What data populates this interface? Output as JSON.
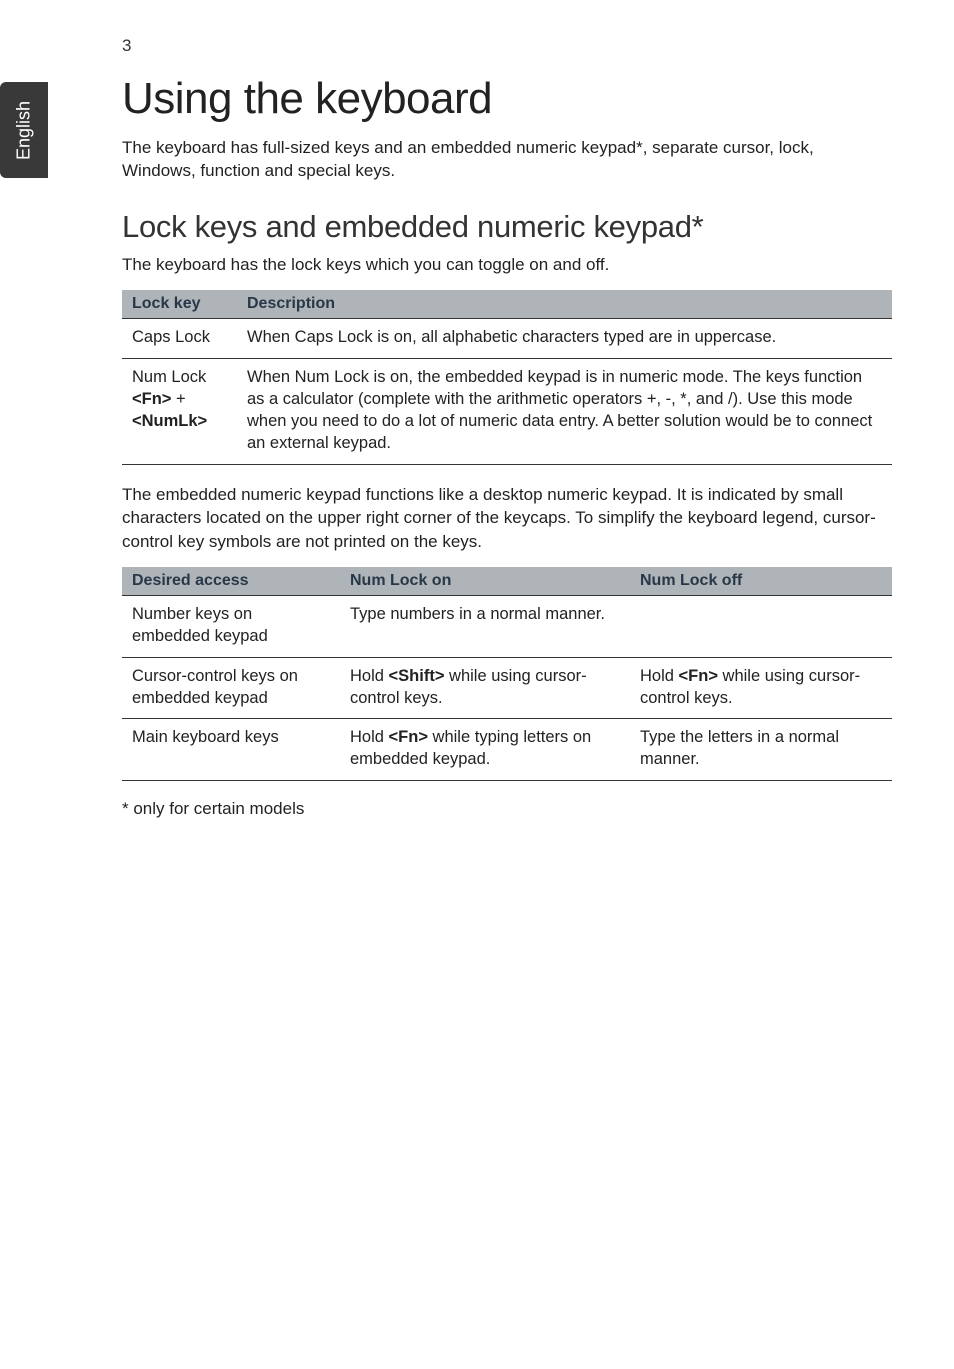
{
  "side_tab": "English",
  "page_number": "3",
  "h1": "Using the keyboard",
  "intro": "The keyboard has full-sized keys and an embedded numeric keypad*, separate cursor, lock, Windows, function and special keys.",
  "h2": "Lock keys and embedded numeric keypad*",
  "sub_intro": "The keyboard has the lock keys which you can toggle on and off.",
  "table1": {
    "headers": {
      "c0": "Lock key",
      "c1": "Description"
    },
    "rows": [
      {
        "c0": "Caps Lock",
        "c1": "When Caps Lock is on, all alphabetic characters typed are in uppercase."
      },
      {
        "c0_html": "Num Lock <br><b>&lt;Fn&gt;</b> + <br><b>&lt;NumLk&gt;</b>",
        "c1": "When Num Lock is on, the embedded keypad is in numeric mode. The keys function as a calculator (complete with the arithmetic operators +, -, *, and /). Use this mode when you need to do a lot of numeric data entry. A better solution would be to connect an external keypad."
      }
    ]
  },
  "mid_para": "The embedded numeric keypad functions like a desktop numeric keypad. It is indicated by small characters located on the upper right corner of the keycaps. To simplify the keyboard legend, cursor-control key symbols are not printed on the keys.",
  "table2": {
    "headers": {
      "c0": "Desired access",
      "c1": "Num Lock on",
      "c2": "Num Lock off"
    },
    "rows": [
      {
        "c0": "Number keys on embedded keypad",
        "c1": "Type numbers in a normal manner.",
        "c2": ""
      },
      {
        "c0": "Cursor-control keys on embedded keypad",
        "c1_html": "Hold <b>&lt;Shift&gt;</b> while using cursor-control keys.",
        "c2_html": "Hold <b>&lt;Fn&gt;</b> while using cursor-control keys."
      },
      {
        "c0": "Main keyboard keys",
        "c1_html": "Hold <b>&lt;Fn&gt;</b> while typing letters on embedded keypad.",
        "c2": "Type the letters in a normal manner."
      }
    ]
  },
  "footnote": "* only for certain models",
  "colors": {
    "th_bg": "#aeb4b8",
    "th_fg": "#283848",
    "side_bg": "#393939"
  }
}
